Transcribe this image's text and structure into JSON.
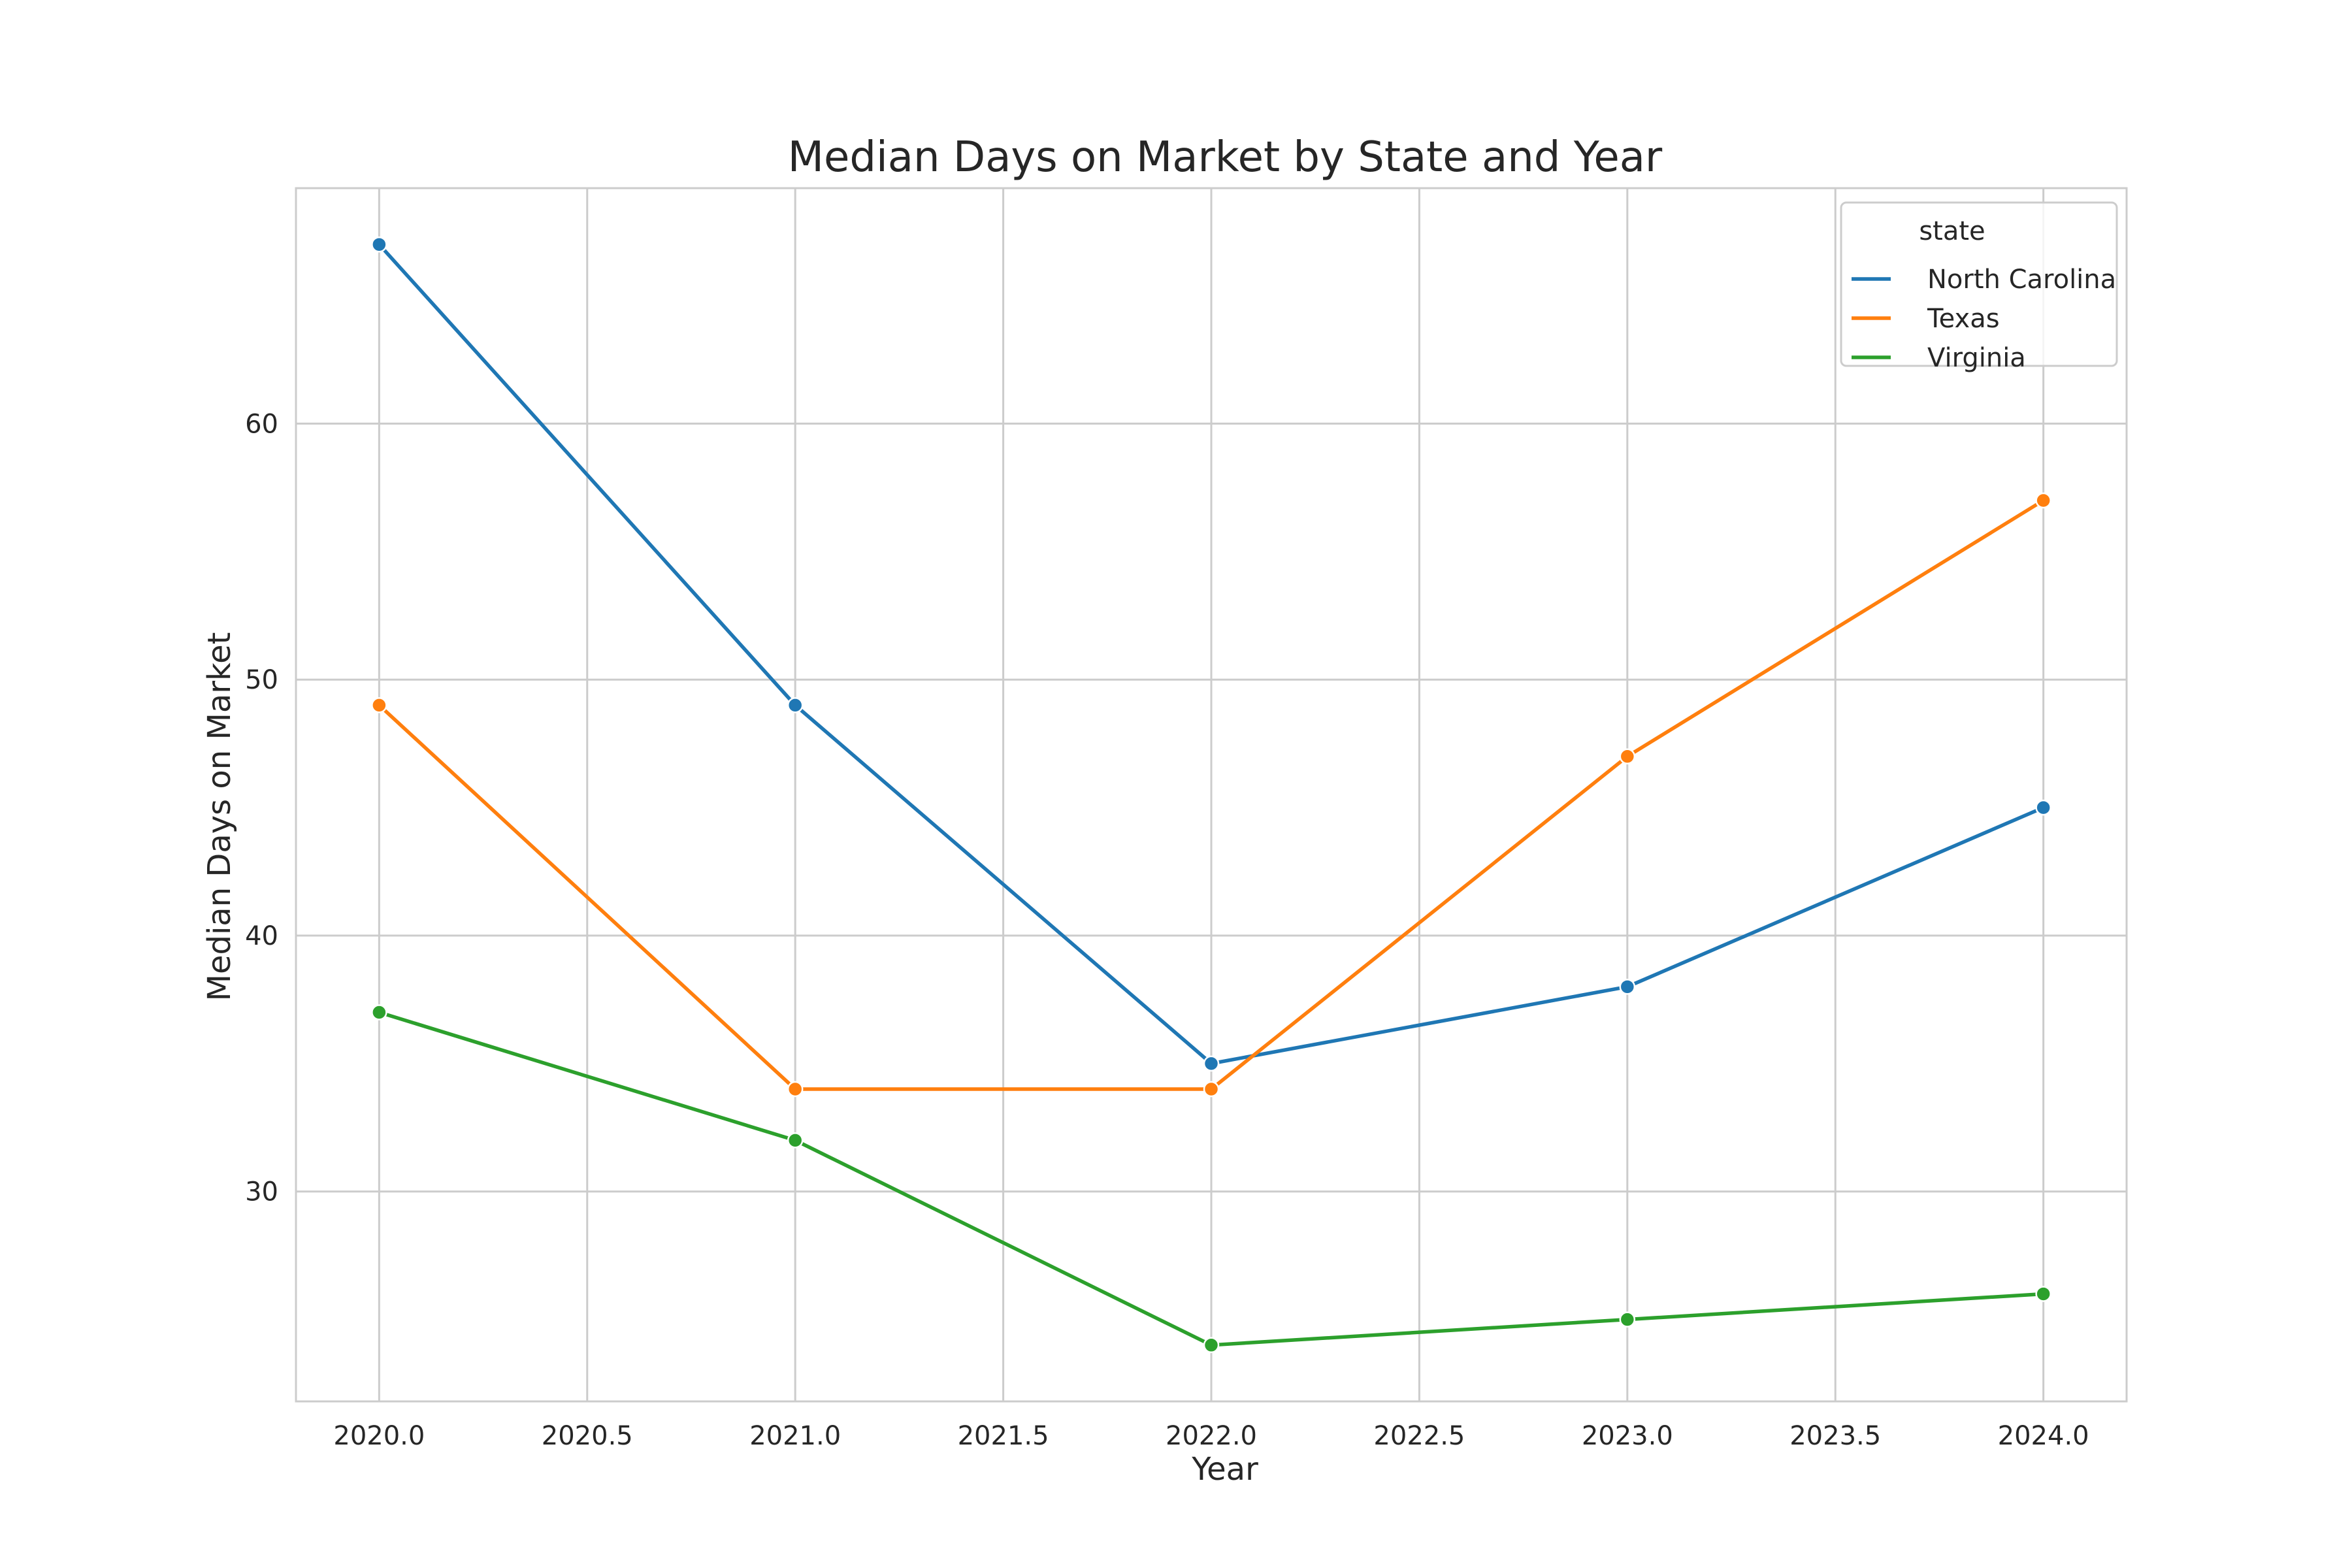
{
  "chart_data": {
    "type": "line",
    "title": "Median Days on Market by State and Year",
    "xlabel": "Year",
    "ylabel": "Median Days on Market",
    "x": [
      2020,
      2021,
      2022,
      2023,
      2024
    ],
    "xlim": [
      2019.8,
      2024.2
    ],
    "ylim": [
      21.8,
      69.2
    ],
    "xticks": [
      2020.0,
      2020.5,
      2021.0,
      2021.5,
      2022.0,
      2022.5,
      2023.0,
      2023.5,
      2024.0
    ],
    "xtick_labels": [
      "2020.0",
      "2020.5",
      "2021.0",
      "2021.5",
      "2022.0",
      "2022.5",
      "2023.0",
      "2023.5",
      "2024.0"
    ],
    "yticks": [
      30,
      40,
      50,
      60
    ],
    "ytick_labels": [
      "30",
      "40",
      "50",
      "60"
    ],
    "grid": true,
    "legend": {
      "title": "state",
      "position": "top-right"
    },
    "series": [
      {
        "name": "North Carolina",
        "color": "#1f77b4",
        "values": [
          67,
          49,
          35,
          38,
          45
        ]
      },
      {
        "name": "Texas",
        "color": "#ff7f0e",
        "values": [
          49,
          34,
          34,
          47,
          57
        ]
      },
      {
        "name": "Virginia",
        "color": "#2ca02c",
        "values": [
          37,
          32,
          24,
          25,
          26
        ]
      }
    ]
  }
}
